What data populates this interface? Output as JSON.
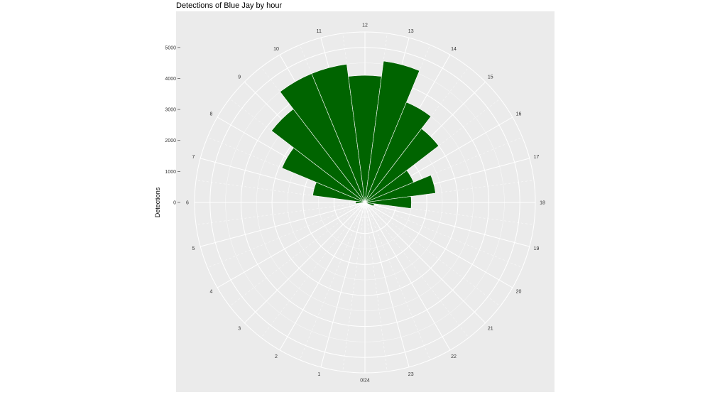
{
  "chart_data": {
    "type": "bar",
    "coordinate_system": "polar",
    "title": "Detections of Blue Jay by hour",
    "ylabel": "Detections",
    "xlabel": "",
    "categories": [
      "0/24",
      "1",
      "2",
      "3",
      "4",
      "5",
      "6",
      "7",
      "8",
      "9",
      "10",
      "11",
      "12",
      "13",
      "14",
      "15",
      "16",
      "17",
      "18",
      "19",
      "20",
      "21",
      "22",
      "23"
    ],
    "values": [
      0,
      0,
      0,
      0,
      0,
      0,
      300,
      1700,
      2900,
      3800,
      4500,
      4500,
      4100,
      4600,
      3500,
      3000,
      1700,
      2300,
      1500,
      300,
      0,
      0,
      0,
      0
    ],
    "y_ticks": [
      "0",
      "1000",
      "2000",
      "3000",
      "4000",
      "5000"
    ],
    "ylim": [
      0,
      5500
    ],
    "bar_color": "#006400",
    "panel_color": "#ebebeb",
    "grid": true
  }
}
